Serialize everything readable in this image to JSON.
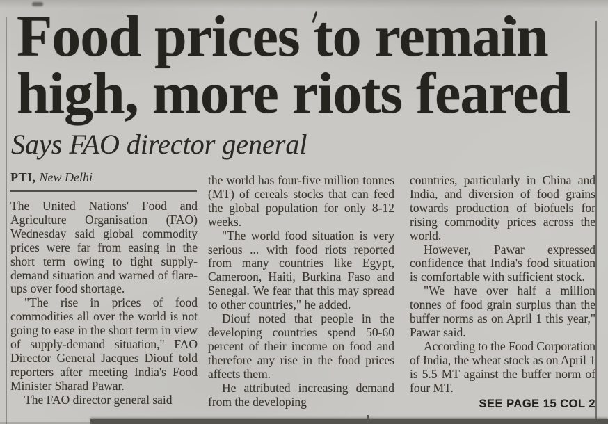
{
  "colors": {
    "paper": "#c9c8c4",
    "headline_ink": "#26241f",
    "body_ink": "#3a372e",
    "rule": "#4f4d47"
  },
  "article": {
    "headline": "Food prices to remain high, more riots feared",
    "headline_lines": [
      "Food prices to remain",
      "high, more riots feared"
    ],
    "subheadline": "Says FAO director general",
    "byline": {
      "agency": "PTI,",
      "location": "New Delhi"
    },
    "columns": [
      {
        "paragraphs": [
          "The United Nations' Food and Agriculture Organisation (FAO) Wednesday said global commodity prices were far from easing in the short term owing to tight supply-demand situation and warned of flare-ups over food shortage.",
          "\"The rise in prices of food commodities all over the world is not going to ease in the short term in view of supply-demand situation,\" FAO Director General Jacques Diouf told reporters after meeting India's Food Minister Sharad Pawar.",
          "The FAO director general said"
        ]
      },
      {
        "paragraphs": [
          "the world has four-five million tonnes (MT) of cereals stocks that can feed the global population for only 8-12 weeks.",
          "\"The world food situation is very serious ... with food riots reported from many countries like Egypt, Cameroon, Haiti, Burkina Faso and Senegal. We fear that this may spread to other countries,\" he added.",
          "Diouf noted that people in the developing countries spend 50-60 percent of their income on food and therefore any rise in the food prices affects them.",
          "He attributed increasing demand from the developing"
        ]
      },
      {
        "paragraphs": [
          "countries, particularly in China and India, and diversion of food grains towards production of biofuels for rising commodity prices across the world.",
          "However, Pawar expressed confidence that India's food situation is comfortable with sufficient stock.",
          "\"We have over half a million tonnes of food grain surplus than the buffer norms as on April 1 this year,\" Pawar said.",
          "According to the Food Corporation of India, the wheat stock as on April 1 is 5.5 MT against the buffer norm of four MT."
        ]
      }
    ],
    "continuation_note": "SEE PAGE 15 COL 2"
  }
}
